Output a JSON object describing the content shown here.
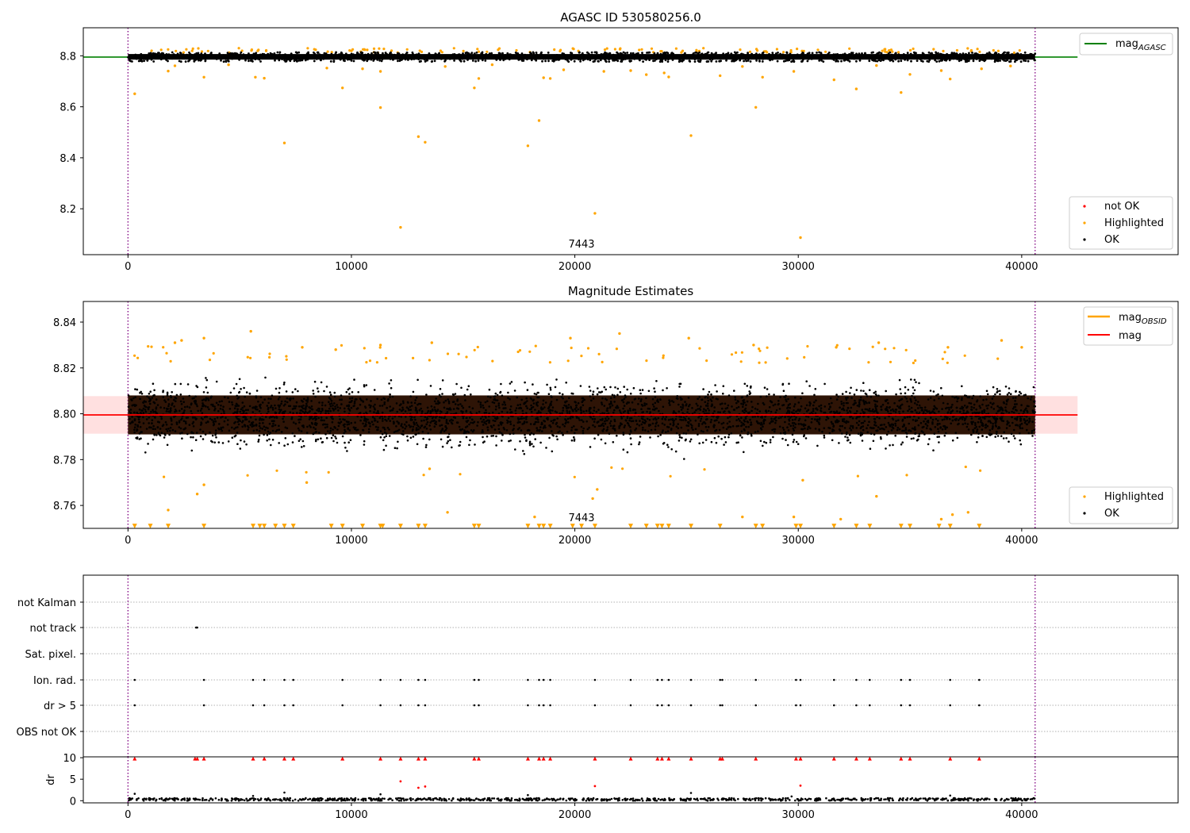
{
  "colors": {
    "ok": "#000000",
    "highlighted": "#ffa500",
    "not_ok": "#ff0000",
    "mag_agasc": "#008000",
    "mag_obsid": "#ffa500",
    "mag": "#ff0000",
    "band": "#ffcccc",
    "vline": "#800080"
  },
  "chart_data": [
    {
      "type": "scatter",
      "title": "AGASC ID 530580256.0",
      "xlabel": "",
      "ylabel": "",
      "xlim": [
        -2000,
        47000
      ],
      "ylim": [
        8.02,
        8.91
      ],
      "xticks": [
        0,
        10000,
        20000,
        30000,
        40000
      ],
      "xtick_labels": [
        "0",
        "10000",
        "20000",
        "30000",
        "40000"
      ],
      "yticks": [
        8.2,
        8.4,
        8.6,
        8.8
      ],
      "ytick_labels": [
        "8.2",
        "8.4",
        "8.6",
        "8.8"
      ],
      "annotation": {
        "text": "7443",
        "x": 20300
      },
      "vlines": [
        0,
        40600
      ],
      "hline": {
        "name": "mag_AGASC",
        "y": 8.795,
        "x": [
          -2000,
          42500
        ]
      },
      "ok_band": {
        "x": [
          0,
          40600
        ],
        "y": [
          8.777,
          8.814
        ],
        "count": 1400
      },
      "highlighted_points": [
        {
          "x": 300,
          "y": 8.651
        },
        {
          "x": 7000,
          "y": 8.458
        },
        {
          "x": 11300,
          "y": 8.597
        },
        {
          "x": 12200,
          "y": 8.127
        },
        {
          "x": 13000,
          "y": 8.483
        },
        {
          "x": 13300,
          "y": 8.461
        },
        {
          "x": 17900,
          "y": 8.447
        },
        {
          "x": 18400,
          "y": 8.546
        },
        {
          "x": 20900,
          "y": 8.182
        },
        {
          "x": 25200,
          "y": 8.487
        },
        {
          "x": 28100,
          "y": 8.598
        },
        {
          "x": 30100,
          "y": 8.087
        },
        {
          "x": 3400,
          "y": 8.716
        },
        {
          "x": 5700,
          "y": 8.716
        },
        {
          "x": 6100,
          "y": 8.712
        },
        {
          "x": 9600,
          "y": 8.674
        },
        {
          "x": 11300,
          "y": 8.739
        },
        {
          "x": 15500,
          "y": 8.674
        },
        {
          "x": 15700,
          "y": 8.711
        },
        {
          "x": 18600,
          "y": 8.714
        },
        {
          "x": 18900,
          "y": 8.711
        },
        {
          "x": 22500,
          "y": 8.742
        },
        {
          "x": 23200,
          "y": 8.726
        },
        {
          "x": 24200,
          "y": 8.717
        },
        {
          "x": 26500,
          "y": 8.722
        },
        {
          "x": 28400,
          "y": 8.716
        },
        {
          "x": 31600,
          "y": 8.706
        },
        {
          "x": 32600,
          "y": 8.67
        },
        {
          "x": 34600,
          "y": 8.656
        },
        {
          "x": 36800,
          "y": 8.709
        },
        {
          "x": 1800,
          "y": 8.74
        },
        {
          "x": 2100,
          "y": 8.761
        },
        {
          "x": 4500,
          "y": 8.765
        },
        {
          "x": 8900,
          "y": 8.752
        },
        {
          "x": 10500,
          "y": 8.749
        },
        {
          "x": 14200,
          "y": 8.758
        },
        {
          "x": 16300,
          "y": 8.765
        },
        {
          "x": 19500,
          "y": 8.745
        },
        {
          "x": 21300,
          "y": 8.739
        },
        {
          "x": 24000,
          "y": 8.733
        },
        {
          "x": 27500,
          "y": 8.758
        },
        {
          "x": 29800,
          "y": 8.739
        },
        {
          "x": 33500,
          "y": 8.762
        },
        {
          "x": 35000,
          "y": 8.727
        },
        {
          "x": 36400,
          "y": 8.742
        },
        {
          "x": 38200,
          "y": 8.749
        },
        {
          "x": 39500,
          "y": 8.76
        }
      ],
      "top_highlight_count": 120,
      "top_highlight_range": [
        8.812,
        8.83
      ],
      "legends": [
        {
          "position": "upper-right",
          "entries": [
            {
              "label": "mag",
              "sub": "AGASC",
              "kind": "line",
              "color": "mag_agasc"
            }
          ]
        },
        {
          "position": "lower-right",
          "entries": [
            {
              "label": "not OK",
              "kind": "point",
              "color": "not_ok"
            },
            {
              "label": "Highlighted",
              "kind": "point",
              "color": "highlighted"
            },
            {
              "label": "OK",
              "kind": "point",
              "color": "ok"
            }
          ]
        }
      ]
    },
    {
      "type": "scatter",
      "title": "Magnitude Estimates",
      "xlabel": "",
      "ylabel": "",
      "xlim": [
        -2000,
        47000
      ],
      "ylim": [
        8.75,
        8.849
      ],
      "xticks": [
        0,
        10000,
        20000,
        30000,
        40000
      ],
      "xtick_labels": [
        "0",
        "10000",
        "20000",
        "30000",
        "40000"
      ],
      "yticks": [
        8.76,
        8.78,
        8.8,
        8.82,
        8.84
      ],
      "ytick_labels": [
        "8.76",
        "8.78",
        "8.80",
        "8.82",
        "8.84"
      ],
      "annotation": {
        "text": "7443",
        "x": 20300
      },
      "vlines": [
        0,
        40600
      ],
      "mag_line": {
        "name": "mag",
        "y": 8.7995,
        "x": [
          -2000,
          42500
        ]
      },
      "mag_band": {
        "y": [
          8.7913,
          8.8077
        ],
        "x": [
          -2000,
          42500
        ]
      },
      "dense_band": {
        "x": [
          0,
          40600
        ],
        "y": [
          8.791,
          8.808
        ]
      },
      "ok_scatter": {
        "x": [
          0,
          40600
        ],
        "y": [
          8.777,
          8.822
        ],
        "count": 3500
      },
      "highlighted_points": [
        {
          "x": 1800,
          "y": 8.758
        },
        {
          "x": 3100,
          "y": 8.765
        },
        {
          "x": 3400,
          "y": 8.769
        },
        {
          "x": 8000,
          "y": 8.77
        },
        {
          "x": 13500,
          "y": 8.776
        },
        {
          "x": 14300,
          "y": 8.757
        },
        {
          "x": 18200,
          "y": 8.755
        },
        {
          "x": 20800,
          "y": 8.763
        },
        {
          "x": 21000,
          "y": 8.767
        },
        {
          "x": 27500,
          "y": 8.755
        },
        {
          "x": 29800,
          "y": 8.755
        },
        {
          "x": 30200,
          "y": 8.771
        },
        {
          "x": 31900,
          "y": 8.754
        },
        {
          "x": 33500,
          "y": 8.764
        },
        {
          "x": 36400,
          "y": 8.754
        },
        {
          "x": 36900,
          "y": 8.756
        },
        {
          "x": 37600,
          "y": 8.757
        },
        {
          "x": 5500,
          "y": 8.836
        },
        {
          "x": 3400,
          "y": 8.833
        },
        {
          "x": 11300,
          "y": 8.83
        },
        {
          "x": 13600,
          "y": 8.831
        },
        {
          "x": 19800,
          "y": 8.833
        },
        {
          "x": 22000,
          "y": 8.835
        },
        {
          "x": 25100,
          "y": 8.833
        },
        {
          "x": 33600,
          "y": 8.831
        },
        {
          "x": 39100,
          "y": 8.832
        },
        {
          "x": 40000,
          "y": 8.829
        },
        {
          "x": 2100,
          "y": 8.831
        },
        {
          "x": 2400,
          "y": 8.832
        },
        {
          "x": 7800,
          "y": 8.829
        },
        {
          "x": 9300,
          "y": 8.828
        },
        {
          "x": 28000,
          "y": 8.83
        },
        {
          "x": 31700,
          "y": 8.829
        },
        {
          "x": 36700,
          "y": 8.829
        }
      ],
      "floor_triangles_x": [
        300,
        1000,
        1800,
        3400,
        5600,
        5900,
        6100,
        6600,
        7000,
        7400,
        9100,
        9600,
        10500,
        11300,
        11400,
        12200,
        13000,
        13300,
        15500,
        15700,
        17900,
        18400,
        18600,
        18900,
        19900,
        20300,
        20900,
        22500,
        23200,
        23700,
        23900,
        24200,
        25200,
        26500,
        28100,
        28400,
        29900,
        30100,
        31600,
        32600,
        33200,
        34600,
        35000,
        36300,
        36800,
        38100
      ],
      "floor_value": 8.751,
      "extra_highlight_count": 90,
      "legends": [
        {
          "position": "upper-right",
          "entries": [
            {
              "label": "mag",
              "sub": "OBSID",
              "kind": "line",
              "color": "mag_obsid"
            },
            {
              "label": "mag",
              "kind": "line",
              "color": "mag"
            }
          ]
        },
        {
          "position": "lower-right",
          "entries": [
            {
              "label": "Highlighted",
              "kind": "point",
              "color": "highlighted"
            },
            {
              "label": "OK",
              "kind": "point",
              "color": "ok"
            }
          ]
        }
      ]
    },
    {
      "type": "scatter",
      "title": "",
      "xlabel": "",
      "ylabel": "",
      "xlim": [
        -2000,
        47000
      ],
      "categories": [
        "not Kalman",
        "not track",
        "Sat. pixel.",
        "Ion. rad.",
        "dr > 5",
        "OBS not OK"
      ],
      "vlines": [
        0,
        40600
      ],
      "flag_points": {
        "not track": [
          3050,
          3100
        ],
        "Ion. rad.": [
          300,
          3400,
          5600,
          6100,
          7000,
          7400,
          9600,
          11300,
          12200,
          13000,
          13300,
          15500,
          15700,
          17900,
          18400,
          18600,
          18900,
          20900,
          22500,
          23700,
          23900,
          24200,
          25200,
          26500,
          26600,
          28100,
          29900,
          30100,
          31600,
          32600,
          33200,
          34600,
          35000,
          36800,
          38100
        ],
        "dr > 5": [
          300,
          3400,
          5600,
          6100,
          7000,
          7400,
          9600,
          11300,
          12200,
          13000,
          13300,
          15500,
          15700,
          17900,
          18400,
          18600,
          18900,
          20900,
          22500,
          23700,
          23900,
          24200,
          25200,
          26500,
          26600,
          28100,
          29900,
          30100,
          31600,
          32600,
          33200,
          34600,
          35000,
          36800,
          38100
        ]
      }
    },
    {
      "type": "scatter",
      "title": "",
      "xlabel": "",
      "ylabel": "dr",
      "xlim": [
        -2000,
        47000
      ],
      "ylim": [
        -0.5,
        10.2
      ],
      "xticks": [
        0,
        10000,
        20000,
        30000,
        40000
      ],
      "xtick_labels": [
        "0",
        "10000",
        "20000",
        "30000",
        "40000"
      ],
      "yticks": [
        0,
        5,
        10
      ],
      "ytick_labels": [
        "0",
        "5",
        "10"
      ],
      "vlines": [
        0,
        40600
      ],
      "capped_value": 9.8,
      "capped_x": [
        300,
        3000,
        3100,
        3400,
        5600,
        6100,
        7000,
        7400,
        9600,
        11300,
        12200,
        13000,
        13300,
        15500,
        15700,
        17900,
        18400,
        18600,
        18900,
        20900,
        22500,
        23700,
        23900,
        24200,
        25200,
        26500,
        26600,
        28100,
        29900,
        30100,
        31600,
        32600,
        33200,
        34600,
        35000,
        36800,
        38100
      ],
      "not_ok_points": [
        {
          "x": 12200,
          "y": 4.5
        },
        {
          "x": 13000,
          "y": 3.0
        },
        {
          "x": 13300,
          "y": 3.3
        },
        {
          "x": 20900,
          "y": 3.4
        },
        {
          "x": 30100,
          "y": 3.5
        }
      ],
      "ok_points": [
        {
          "x": 300,
          "y": 1.6
        },
        {
          "x": 7000,
          "y": 1.9
        },
        {
          "x": 11300,
          "y": 1.5
        },
        {
          "x": 25200,
          "y": 1.8
        },
        {
          "x": 17900,
          "y": 1.3
        },
        {
          "x": 36800,
          "y": 1.2
        },
        {
          "x": 5600,
          "y": 1.1
        },
        {
          "x": 29700,
          "y": 1.0
        }
      ],
      "base_count": 900,
      "base_range": [
        0,
        0.6
      ]
    }
  ]
}
